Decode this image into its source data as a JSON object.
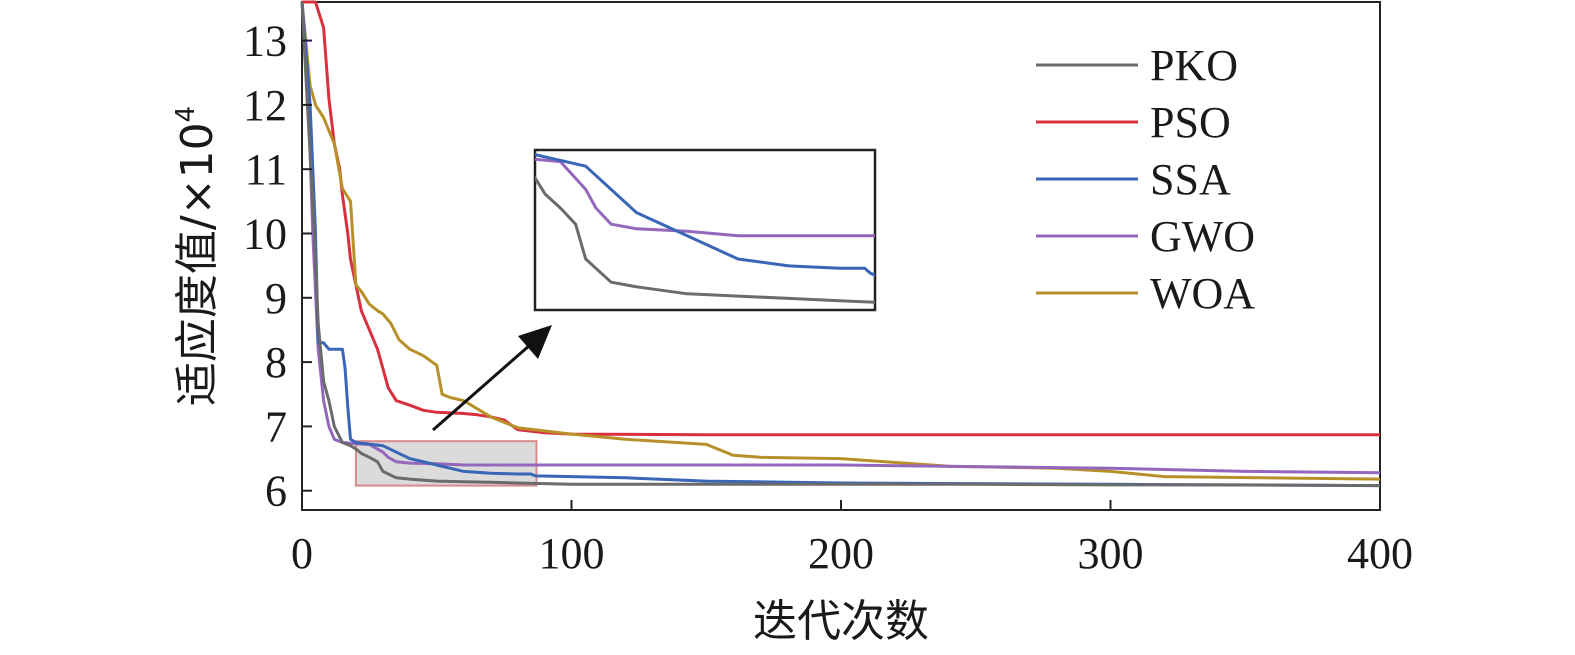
{
  "chart_data": {
    "type": "line",
    "xlabel": "迭代次数",
    "ylabel": "适应度值/×10",
    "ylabel_exponent": "4",
    "xlim": [
      0,
      400
    ],
    "ylim": [
      5.7,
      13.6
    ],
    "xticks": [
      0,
      100,
      200,
      300,
      400
    ],
    "yticks": [
      6,
      7,
      8,
      9,
      10,
      11,
      12,
      13
    ],
    "grid": false,
    "legend_position": "top-right",
    "series": [
      {
        "name": "PKO",
        "color": "#6b6b6b",
        "x": [
          0,
          2,
          4,
          6,
          8,
          10,
          12,
          15,
          18,
          20,
          22,
          25,
          28,
          30,
          35,
          40,
          50,
          60,
          70,
          80,
          90,
          100,
          150,
          200,
          250,
          300,
          350,
          400
        ],
        "y": [
          13.6,
          12.0,
          10.5,
          8.6,
          7.7,
          7.4,
          7.0,
          6.75,
          6.7,
          6.65,
          6.58,
          6.52,
          6.45,
          6.3,
          6.2,
          6.18,
          6.15,
          6.14,
          6.13,
          6.12,
          6.11,
          6.1,
          6.1,
          6.1,
          6.1,
          6.09,
          6.09,
          6.08
        ]
      },
      {
        "name": "PSO",
        "color": "#d9303f",
        "x": [
          0,
          5,
          8,
          10,
          12,
          14,
          15,
          16,
          17,
          18,
          20,
          22,
          25,
          28,
          30,
          32,
          35,
          40,
          45,
          50,
          55,
          60,
          65,
          70,
          75,
          80,
          90,
          100,
          150,
          200,
          300,
          400
        ],
        "y": [
          13.6,
          13.6,
          13.2,
          12.1,
          11.4,
          11.0,
          10.6,
          10.3,
          10.0,
          9.6,
          9.2,
          8.8,
          8.5,
          8.2,
          7.9,
          7.6,
          7.4,
          7.33,
          7.25,
          7.22,
          7.21,
          7.2,
          7.18,
          7.15,
          7.1,
          6.95,
          6.9,
          6.88,
          6.87,
          6.87,
          6.87,
          6.87
        ]
      },
      {
        "name": "SSA",
        "color": "#3a66b7",
        "x": [
          0,
          3,
          5,
          6,
          7,
          8,
          10,
          11,
          15,
          16,
          17,
          18,
          20,
          30,
          40,
          50,
          60,
          70,
          80,
          85,
          86,
          87,
          100,
          120,
          150,
          200,
          300,
          400
        ],
        "y": [
          13.6,
          12.0,
          10.0,
          8.3,
          8.3,
          8.3,
          8.2,
          8.2,
          8.2,
          7.9,
          7.3,
          6.8,
          6.75,
          6.7,
          6.5,
          6.4,
          6.3,
          6.27,
          6.26,
          6.26,
          6.24,
          6.23,
          6.22,
          6.2,
          6.15,
          6.12,
          6.1,
          6.08
        ]
      },
      {
        "name": "GWO",
        "color": "#9467bd",
        "x": [
          0,
          2,
          4,
          6,
          8,
          10,
          12,
          15,
          20,
          25,
          30,
          32,
          35,
          40,
          50,
          60,
          80,
          100,
          150,
          200,
          300,
          350,
          400
        ],
        "y": [
          13.6,
          12.5,
          10.0,
          8.2,
          7.4,
          7.0,
          6.8,
          6.75,
          6.73,
          6.72,
          6.6,
          6.52,
          6.45,
          6.43,
          6.42,
          6.4,
          6.4,
          6.4,
          6.4,
          6.4,
          6.35,
          6.3,
          6.28
        ]
      },
      {
        "name": "WOA",
        "color": "#b8902a",
        "x": [
          0,
          3,
          5,
          8,
          10,
          12,
          15,
          18,
          20,
          22,
          25,
          28,
          30,
          33,
          36,
          40,
          45,
          50,
          52,
          55,
          60,
          70,
          80,
          100,
          120,
          150,
          160,
          170,
          200,
          240,
          280,
          300,
          320,
          400
        ],
        "y": [
          13.6,
          12.3,
          12.0,
          11.8,
          11.6,
          11.4,
          10.7,
          10.5,
          9.2,
          9.1,
          8.9,
          8.8,
          8.75,
          8.6,
          8.35,
          8.2,
          8.1,
          7.95,
          7.5,
          7.45,
          7.4,
          7.15,
          6.98,
          6.88,
          6.8,
          6.72,
          6.55,
          6.52,
          6.5,
          6.38,
          6.35,
          6.3,
          6.22,
          6.18
        ]
      }
    ],
    "inset": {
      "zoom_region": {
        "x": [
          20,
          87
        ],
        "y": [
          6.08,
          6.77
        ]
      },
      "x_range": [
        20,
        87
      ],
      "y_range": [
        6.08,
        6.77
      ],
      "annotation": "arrow from zoom region to inset"
    }
  }
}
